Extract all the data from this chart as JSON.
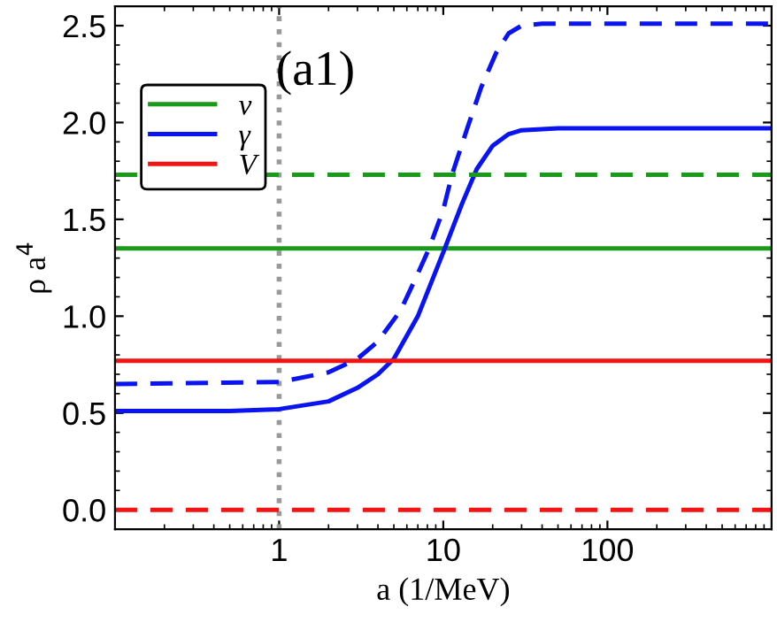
{
  "chart_data": {
    "type": "line",
    "xlabel": "a (1/MeV)",
    "ylabel": "ρ a$^{4}$",
    "log": "x",
    "xlim": [
      0.1,
      1000
    ],
    "xticks": [
      1,
      10,
      100
    ],
    "ylim": [
      -0.1,
      2.6
    ],
    "yticks": [
      {
        "value": 0,
        "label": "0.0"
      },
      0.5,
      {
        "value": 1,
        "label": "1.0"
      },
      1.5,
      {
        "value": 2,
        "label": "2.0"
      },
      2.5
    ],
    "grid": false,
    "legend": "top left",
    "annotations": [
      "(a1)"
    ],
    "ref_lines": [
      {
        "axis": "x",
        "value": 1,
        "label": null,
        "color": "#999999",
        "line_style": "dotted"
      }
    ],
    "series": [
      {
        "name": "ν",
        "color": "#1a9a1a",
        "line_style": "solid",
        "x": [
          0.1,
          1000
        ],
        "values": [
          1.35,
          1.35
        ]
      },
      {
        "name": "γ",
        "color": "#0a14f0",
        "line_style": "solid",
        "x": [
          0.1,
          0.5,
          1,
          2,
          3,
          4,
          5,
          7,
          10,
          13,
          16,
          20,
          25,
          30,
          50,
          1000
        ],
        "values": [
          0.51,
          0.51,
          0.52,
          0.56,
          0.63,
          0.7,
          0.78,
          1.0,
          1.33,
          1.58,
          1.76,
          1.88,
          1.94,
          1.96,
          1.97,
          1.97
        ]
      },
      {
        "name": "V",
        "color": "#f01414",
        "line_style": "solid",
        "x": [
          0.1,
          1000
        ],
        "values": [
          0.77,
          0.77
        ]
      },
      {
        "color": "#1a9a1a",
        "line_style": "dashed",
        "x": [
          0.1,
          1000
        ],
        "values": [
          1.73,
          1.73
        ]
      },
      {
        "color": "#0a14f0",
        "line_style": "dashed",
        "x": [
          0.1,
          1,
          2,
          3,
          4,
          5.5,
          7,
          8.2,
          10,
          11.3,
          14,
          17,
          21,
          25,
          30,
          40,
          1000
        ],
        "values": [
          0.65,
          0.66,
          0.71,
          0.78,
          0.87,
          1.03,
          1.22,
          1.35,
          1.55,
          1.73,
          1.97,
          2.18,
          2.36,
          2.46,
          2.5,
          2.51,
          2.51
        ]
      },
      {
        "color": "#f01414",
        "line_style": "dashed",
        "x": [
          0.1,
          1000
        ],
        "values": [
          0.0,
          0.0
        ]
      }
    ]
  }
}
